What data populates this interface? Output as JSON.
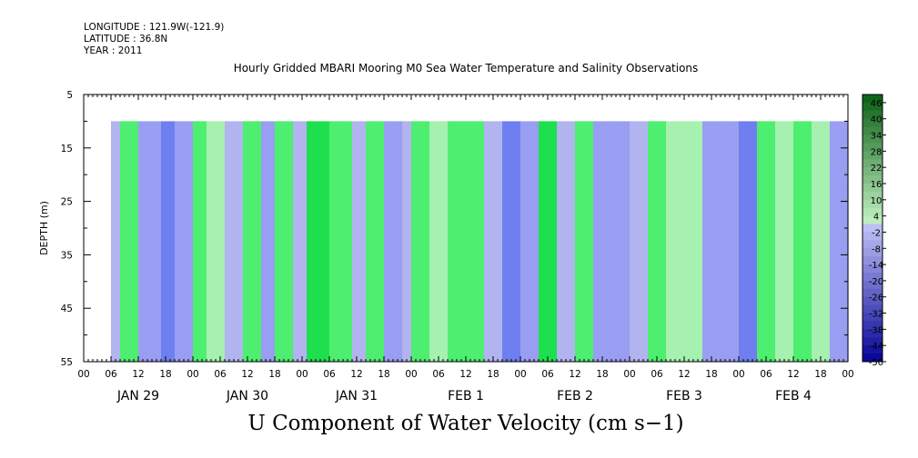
{
  "header": {
    "longitude": "LONGITUDE : 121.9W(-121.9)",
    "latitude": "LATITUDE : 36.8N",
    "year": "YEAR : 2011"
  },
  "chart_data": {
    "type": "heatmap",
    "title": "Hourly Gridded MBARI Mooring M0 Sea Water Temperature and Salinity Observations",
    "subtitle": "U Component of Water Velocity (cm s−1)",
    "ylabel": "DEPTH (m)",
    "xlabel": "",
    "y_ticks": [
      5,
      15,
      25,
      35,
      45,
      55
    ],
    "ylim": [
      55,
      5
    ],
    "x_hour_labels": [
      "00",
      "06",
      "12",
      "18",
      "00",
      "06",
      "12",
      "18",
      "00",
      "06",
      "12",
      "18",
      "00",
      "06",
      "12",
      "18",
      "00",
      "06",
      "12",
      "18",
      "00",
      "06",
      "12",
      "18",
      "00",
      "06",
      "12",
      "18",
      "00"
    ],
    "x_day_labels": [
      "JAN 29",
      "JAN 30",
      "JAN 31",
      "FEB  1",
      "FEB  2",
      "FEB  3",
      "FEB  4"
    ],
    "x_range_hours": [
      0,
      168
    ],
    "data_start_hour": 6,
    "data_top_depth": 10,
    "colorbar_ticks": [
      46,
      40,
      34,
      28,
      22,
      16,
      10,
      4,
      -2,
      -8,
      -14,
      -20,
      -26,
      -32,
      -38,
      -44,
      -50
    ],
    "colorbar_range": [
      -50,
      49
    ],
    "colors": {
      "negative_light": "#b2b4f0",
      "negative_mid": "#9a9ef2",
      "negative_strong": "#6f7ff0",
      "positive_light": "#a6f0b0",
      "positive_mid": "#4eee70",
      "positive_strong": "#1ee04e"
    },
    "bands": [
      {
        "hour_start": 6,
        "hour_end": 8,
        "value": -5
      },
      {
        "hour_start": 8,
        "hour_end": 12,
        "value": 8
      },
      {
        "hour_start": 12,
        "hour_end": 17,
        "value": -10
      },
      {
        "hour_start": 17,
        "hour_end": 20,
        "value": -14
      },
      {
        "hour_start": 20,
        "hour_end": 24,
        "value": -8
      },
      {
        "hour_start": 24,
        "hour_end": 27,
        "value": 14
      },
      {
        "hour_start": 27,
        "hour_end": 31,
        "value": 6
      },
      {
        "hour_start": 31,
        "hour_end": 35,
        "value": -6
      },
      {
        "hour_start": 35,
        "hour_end": 39,
        "value": 10
      },
      {
        "hour_start": 39,
        "hour_end": 42,
        "value": -8
      },
      {
        "hour_start": 42,
        "hour_end": 46,
        "value": 8
      },
      {
        "hour_start": 46,
        "hour_end": 49,
        "value": -4
      },
      {
        "hour_start": 49,
        "hour_end": 54,
        "value": 16
      },
      {
        "hour_start": 54,
        "hour_end": 59,
        "value": 8
      },
      {
        "hour_start": 59,
        "hour_end": 62,
        "value": -4
      },
      {
        "hour_start": 62,
        "hour_end": 66,
        "value": 14
      },
      {
        "hour_start": 66,
        "hour_end": 70,
        "value": -12
      },
      {
        "hour_start": 70,
        "hour_end": 72,
        "value": -6
      },
      {
        "hour_start": 72,
        "hour_end": 76,
        "value": 12
      },
      {
        "hour_start": 76,
        "hour_end": 80,
        "value": 4
      },
      {
        "hour_start": 80,
        "hour_end": 84,
        "value": 10
      },
      {
        "hour_start": 84,
        "hour_end": 88,
        "value": 8
      },
      {
        "hour_start": 88,
        "hour_end": 92,
        "value": -4
      },
      {
        "hour_start": 92,
        "hour_end": 96,
        "value": -16
      },
      {
        "hour_start": 96,
        "hour_end": 100,
        "value": -8
      },
      {
        "hour_start": 100,
        "hour_end": 104,
        "value": 18
      },
      {
        "hour_start": 104,
        "hour_end": 108,
        "value": -4
      },
      {
        "hour_start": 108,
        "hour_end": 112,
        "value": 12
      },
      {
        "hour_start": 112,
        "hour_end": 116,
        "value": -10
      },
      {
        "hour_start": 116,
        "hour_end": 120,
        "value": -12
      },
      {
        "hour_start": 120,
        "hour_end": 124,
        "value": -6
      },
      {
        "hour_start": 124,
        "hour_end": 128,
        "value": 14
      },
      {
        "hour_start": 128,
        "hour_end": 132,
        "value": 4
      },
      {
        "hour_start": 132,
        "hour_end": 136,
        "value": 2
      },
      {
        "hour_start": 136,
        "hour_end": 140,
        "value": -8
      },
      {
        "hour_start": 140,
        "hour_end": 144,
        "value": -12
      },
      {
        "hour_start": 144,
        "hour_end": 148,
        "value": -18
      },
      {
        "hour_start": 148,
        "hour_end": 152,
        "value": 10
      },
      {
        "hour_start": 152,
        "hour_end": 156,
        "value": 6
      },
      {
        "hour_start": 156,
        "hour_end": 160,
        "value": 10
      },
      {
        "hour_start": 160,
        "hour_end": 164,
        "value": 4
      },
      {
        "hour_start": 164,
        "hour_end": 168,
        "value": -8
      }
    ]
  }
}
